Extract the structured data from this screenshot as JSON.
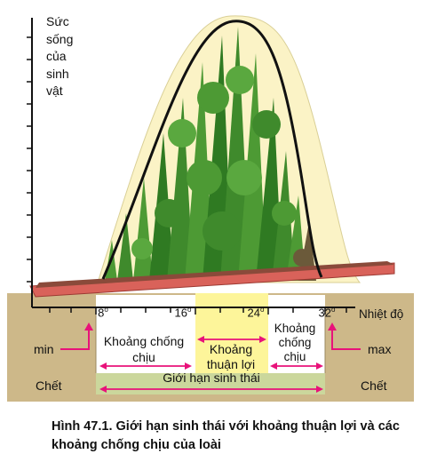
{
  "figure": {
    "y_axis_label": "Sức sống của sinh vật",
    "y_axis_lines": [
      "Sức",
      "sống",
      "của",
      "sinh",
      "vật"
    ],
    "x_axis_label": "Nhiệt độ",
    "ticks": [
      "8",
      "16",
      "24",
      "32"
    ],
    "degree_symbol": "o",
    "zones": {
      "tolerance_left_lines": [
        "Khoảng chống",
        "chịu"
      ],
      "optimal_lines": [
        "Khoảng",
        "thuận lợi"
      ],
      "tolerance_right_lines": [
        "Khoảng",
        "chống",
        "chịu"
      ],
      "limit": "Giới hạn sinh thái"
    },
    "min_label": "min",
    "max_label": "max",
    "dead_left": "Chết",
    "dead_right": "Chết",
    "colors": {
      "ground": "#cdb889",
      "optimal_band": "#fdf59a",
      "arrows": "#e8127a",
      "tray": "#d9625a",
      "plants": "#3f8a2c",
      "bell_fill": "#fbf3c6",
      "curve": "#111111",
      "limit_bar": "#cbd79c"
    }
  },
  "caption": "Hình 47.1. Giới hạn sinh thái với khoảng thuận lợi và các khoảng chống chịu của loài"
}
